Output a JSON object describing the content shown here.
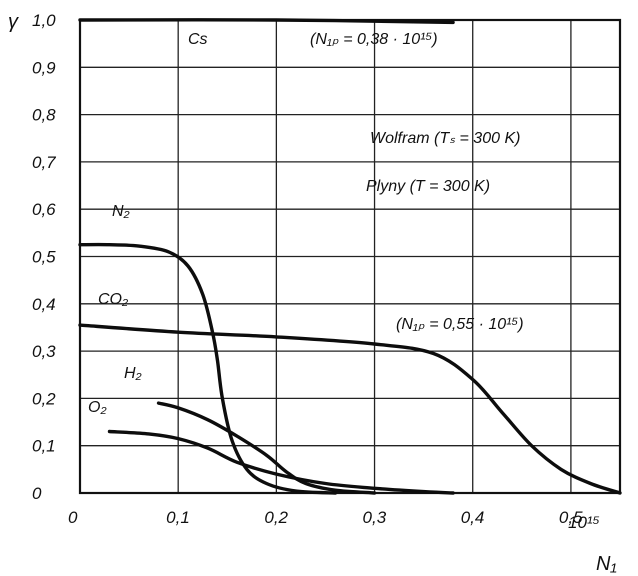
{
  "chart_data": {
    "type": "line",
    "xlabel": "N₁",
    "ylabel": "γ",
    "x_unit": "10¹⁵",
    "xlim": [
      0,
      0.55
    ],
    "ylim": [
      0,
      1.0
    ],
    "grid": true,
    "x_ticks": [
      {
        "value": 0,
        "label": "0"
      },
      {
        "value": 0.1,
        "label": "0,1"
      },
      {
        "value": 0.2,
        "label": "0,2"
      },
      {
        "value": 0.3,
        "label": "0,3"
      },
      {
        "value": 0.4,
        "label": "0,4"
      },
      {
        "value": 0.5,
        "label": "0,5"
      }
    ],
    "y_ticks": [
      {
        "value": 0,
        "label": "0"
      },
      {
        "value": 0.1,
        "label": "0,1"
      },
      {
        "value": 0.2,
        "label": "0,2"
      },
      {
        "value": 0.3,
        "label": "0,3"
      },
      {
        "value": 0.4,
        "label": "0,4"
      },
      {
        "value": 0.5,
        "label": "0,5"
      },
      {
        "value": 0.6,
        "label": "0,6"
      },
      {
        "value": 0.7,
        "label": "0,7"
      },
      {
        "value": 0.8,
        "label": "0,8"
      },
      {
        "value": 0.9,
        "label": "0,9"
      },
      {
        "value": 1.0,
        "label": "1,0"
      }
    ],
    "annotations": [
      "Wolfram (Tₛ = 300 K)",
      "Plyny (T = 300 K)",
      "(N₁ₚ = 0,55 · 10¹⁵)"
    ],
    "series": [
      {
        "name": "Cs",
        "note": "(N₁ₚ = 0,38 · 10¹⁵)",
        "x": [
          0.0,
          0.2,
          0.38
        ],
        "y": [
          1.0,
          1.0,
          0.995
        ]
      },
      {
        "name": "N₂",
        "x": [
          0.0,
          0.03,
          0.06,
          0.09,
          0.11,
          0.125,
          0.135,
          0.14,
          0.145,
          0.155,
          0.17,
          0.19,
          0.22,
          0.26
        ],
        "y": [
          0.525,
          0.525,
          0.522,
          0.51,
          0.48,
          0.42,
          0.34,
          0.28,
          0.2,
          0.11,
          0.05,
          0.02,
          0.004,
          0.0
        ]
      },
      {
        "name": "CO₂",
        "x": [
          0.0,
          0.1,
          0.2,
          0.3,
          0.36,
          0.4,
          0.43,
          0.46,
          0.49,
          0.52,
          0.55
        ],
        "y": [
          0.355,
          0.34,
          0.33,
          0.315,
          0.295,
          0.24,
          0.17,
          0.1,
          0.05,
          0.02,
          0.0
        ]
      },
      {
        "name": "H₂",
        "x": [
          0.08,
          0.1,
          0.13,
          0.16,
          0.19,
          0.21,
          0.23,
          0.26,
          0.3
        ],
        "y": [
          0.19,
          0.18,
          0.155,
          0.12,
          0.08,
          0.045,
          0.02,
          0.006,
          0.0
        ]
      },
      {
        "name": "O₂",
        "x": [
          0.03,
          0.07,
          0.1,
          0.13,
          0.16,
          0.2,
          0.25,
          0.3,
          0.35,
          0.38
        ],
        "y": [
          0.13,
          0.125,
          0.115,
          0.095,
          0.065,
          0.04,
          0.02,
          0.01,
          0.003,
          0.0
        ]
      }
    ]
  }
}
